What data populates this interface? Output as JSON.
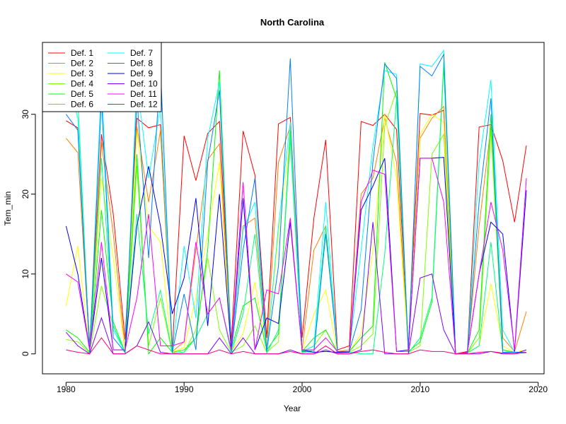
{
  "chart_data": {
    "type": "line",
    "title": "North Carolina",
    "xlabel": "Year",
    "ylabel": "Tem_min",
    "xlim": [
      1978,
      2020.5
    ],
    "ylim": [
      -2.5,
      39
    ],
    "x_ticks": [
      1980,
      1990,
      2000,
      2010,
      2020
    ],
    "y_ticks": [
      0,
      10,
      20,
      30
    ],
    "legend_position": "top-left",
    "grid": false,
    "x": [
      1980,
      1981,
      1982,
      1983,
      1984,
      1985,
      1986,
      1987,
      1988,
      1989,
      1990,
      1991,
      1992,
      1993,
      1994,
      1995,
      1996,
      1997,
      1998,
      1999,
      2000,
      2001,
      2002,
      2003,
      2004,
      2005,
      2006,
      2007,
      2008,
      2009,
      2010,
      2011,
      2012,
      2013,
      2014,
      2015,
      2016,
      2017,
      2018,
      2019
    ],
    "series": [
      {
        "name": "Def. 1",
        "color": "#FF0000",
        "values": [
          29.2,
          28.3,
          1.0,
          27.5,
          17.5,
          1.8,
          29.5,
          28.3,
          28.7,
          0.5,
          27.3,
          21.7,
          27.6,
          29.1,
          1.5,
          27.9,
          22.4,
          2.0,
          28.8,
          29.6,
          2.0,
          17.0,
          26.8,
          0.5,
          1.0,
          29.1,
          28.6,
          30.0,
          28.1,
          0.8,
          30.1,
          29.9,
          30.5,
          0.0,
          0.3,
          28.4,
          28.7,
          24.2,
          16.5,
          26.1
        ]
      },
      {
        "name": "Def. 2",
        "color": "#FF8000",
        "values": [
          27.0,
          25.2,
          0.5,
          26.5,
          15.0,
          0.5,
          28.5,
          19.0,
          28.0,
          0.3,
          1.5,
          13.0,
          24.3,
          26.3,
          0.5,
          16.0,
          17.0,
          0.5,
          24.0,
          28.5,
          0.5,
          13.0,
          16.0,
          0.3,
          0.5,
          20.0,
          22.0,
          29.5,
          24.0,
          0.5,
          27.0,
          29.5,
          31.0,
          0.0,
          0.2,
          16.0,
          28.5,
          2.0,
          0.3,
          5.3
        ]
      },
      {
        "name": "Def. 3",
        "color": "#FFFF00",
        "values": [
          6.0,
          13.5,
          0.3,
          22.0,
          12.0,
          0.3,
          28.0,
          16.0,
          14.0,
          0.2,
          0.8,
          7.0,
          15.0,
          24.0,
          0.3,
          2.5,
          9.0,
          0.3,
          15.0,
          27.0,
          0.3,
          5.0,
          8.0,
          0.2,
          0.3,
          2.5,
          13.0,
          30.0,
          22.0,
          0.3,
          27.5,
          30.0,
          29.0,
          0.0,
          0.1,
          1.0,
          8.8,
          1.0,
          0.2,
          0.5
        ]
      },
      {
        "name": "Def. 4",
        "color": "#80FF00",
        "values": [
          1.8,
          1.5,
          0.1,
          8.5,
          3.5,
          0.1,
          23.5,
          1.0,
          7.0,
          0.1,
          0.2,
          3.0,
          12.0,
          3.0,
          0.2,
          1.0,
          3.5,
          0.2,
          1.5,
          28.0,
          0.2,
          1.0,
          3.0,
          0.1,
          0.2,
          1.0,
          2.5,
          28.5,
          33.0,
          0.2,
          1.0,
          25.0,
          27.5,
          0.0,
          0.1,
          2.0,
          28.0,
          0.5,
          0.1,
          0.2
        ]
      },
      {
        "name": "Def. 5",
        "color": "#00FF00",
        "values": [
          3.0,
          2.0,
          0.2,
          18.0,
          4.0,
          0.2,
          25.0,
          0.0,
          2.0,
          0.2,
          0.5,
          2.0,
          13.0,
          35.5,
          0.5,
          6.0,
          7.0,
          0.5,
          2.5,
          28.0,
          0.3,
          2.0,
          3.0,
          0.2,
          0.3,
          2.0,
          3.5,
          36.5,
          32.0,
          0.3,
          1.5,
          6.5,
          36.0,
          0.0,
          0.1,
          3.0,
          30.0,
          0.5,
          0.2,
          0.2
        ]
      },
      {
        "name": "Def. 6",
        "color": "#00FF80",
        "values": [
          34.0,
          32.0,
          0.1,
          24.5,
          3.5,
          0.1,
          17.5,
          2.5,
          8.0,
          0.1,
          0.2,
          2.0,
          5.0,
          7.0,
          0.1,
          5.0,
          15.0,
          0.1,
          3.0,
          27.0,
          0.1,
          0.5,
          16.0,
          0.1,
          0.2,
          0.0,
          0.0,
          12.5,
          32.0,
          0.1,
          2.0,
          7.0,
          36.5,
          0.0,
          0.1,
          1.0,
          14.0,
          0.2,
          0.1,
          0.1
        ]
      },
      {
        "name": "Def. 7",
        "color": "#00FFFF",
        "values": [
          35.0,
          29.5,
          0.2,
          34.0,
          3.0,
          0.2,
          34.0,
          22.0,
          31.0,
          0.2,
          13.5,
          4.5,
          27.0,
          34.0,
          0.3,
          15.5,
          19.0,
          0.3,
          16.0,
          29.0,
          0.3,
          1.0,
          19.0,
          0.2,
          0.3,
          13.0,
          26.0,
          35.5,
          35.0,
          0.3,
          36.3,
          36.0,
          38.0,
          0.0,
          0.1,
          24.0,
          34.3,
          3.0,
          0.2,
          0.2
        ]
      },
      {
        "name": "Def. 8",
        "color": "#0080FF",
        "values": [
          30.0,
          28.0,
          0.2,
          32.0,
          2.0,
          0.2,
          32.0,
          12.0,
          36.0,
          0.2,
          7.5,
          0.5,
          24.0,
          33.0,
          0.3,
          13.0,
          22.0,
          0.3,
          11.0,
          37.0,
          0.3,
          0.2,
          15.0,
          0.2,
          0.3,
          5.5,
          24.0,
          36.3,
          34.5,
          0.3,
          36.0,
          34.8,
          37.5,
          0.0,
          0.1,
          19.0,
          32.0,
          0.2,
          0.2,
          0.2
        ]
      },
      {
        "name": "Def. 9",
        "color": "#0000FF",
        "values": [
          16.0,
          10.0,
          0.5,
          12.0,
          0.5,
          0.5,
          16.0,
          23.5,
          16.0,
          5.0,
          9.5,
          19.5,
          3.5,
          20.0,
          0.5,
          19.5,
          0.5,
          4.5,
          3.8,
          16.5,
          0.5,
          0.2,
          0.3,
          0.2,
          0.2,
          18.0,
          21.0,
          24.5,
          0.3,
          0.5,
          24.5,
          24.5,
          24.6,
          0.0,
          0.2,
          10.0,
          16.5,
          15.0,
          0.3,
          20.5
        ]
      },
      {
        "name": "Def. 10",
        "color": "#8000FF",
        "values": [
          2.7,
          1.0,
          0.0,
          4.5,
          0.0,
          0.0,
          1.0,
          4.0,
          0.2,
          0.0,
          0.0,
          0.0,
          0.0,
          2.0,
          0.0,
          2.0,
          0.0,
          0.0,
          0.0,
          0.5,
          0.0,
          0.0,
          0.5,
          0.0,
          0.0,
          0.5,
          16.5,
          0.0,
          0.0,
          0.0,
          9.5,
          10.0,
          3.0,
          0.0,
          0.0,
          0.0,
          0.3,
          0.0,
          0.0,
          0.5
        ]
      },
      {
        "name": "Def. 11",
        "color": "#FF00FF",
        "values": [
          10.0,
          9.0,
          0.5,
          14.0,
          0.5,
          0.5,
          7.0,
          17.5,
          1.0,
          1.0,
          1.5,
          14.0,
          5.0,
          7.0,
          0.5,
          21.5,
          0.5,
          8.0,
          7.5,
          17.0,
          0.5,
          0.5,
          2.0,
          0.3,
          0.3,
          19.0,
          23.0,
          22.5,
          0.3,
          0.3,
          24.5,
          24.5,
          19.0,
          0.0,
          0.2,
          10.0,
          19.0,
          13.0,
          0.5,
          22.0
        ]
      },
      {
        "name": "Def. 12",
        "color": "#FF0080",
        "values": [
          0.5,
          0.2,
          0.0,
          2.0,
          0.0,
          0.0,
          1.0,
          0.5,
          0.0,
          0.0,
          0.0,
          0.0,
          0.0,
          0.5,
          0.0,
          0.3,
          0.0,
          0.0,
          0.0,
          0.3,
          0.0,
          0.0,
          1.0,
          0.0,
          0.0,
          0.3,
          0.5,
          0.2,
          0.0,
          0.0,
          0.5,
          0.3,
          0.3,
          0.0,
          0.0,
          0.2,
          0.3,
          0.1,
          0.0,
          0.2
        ]
      }
    ]
  }
}
